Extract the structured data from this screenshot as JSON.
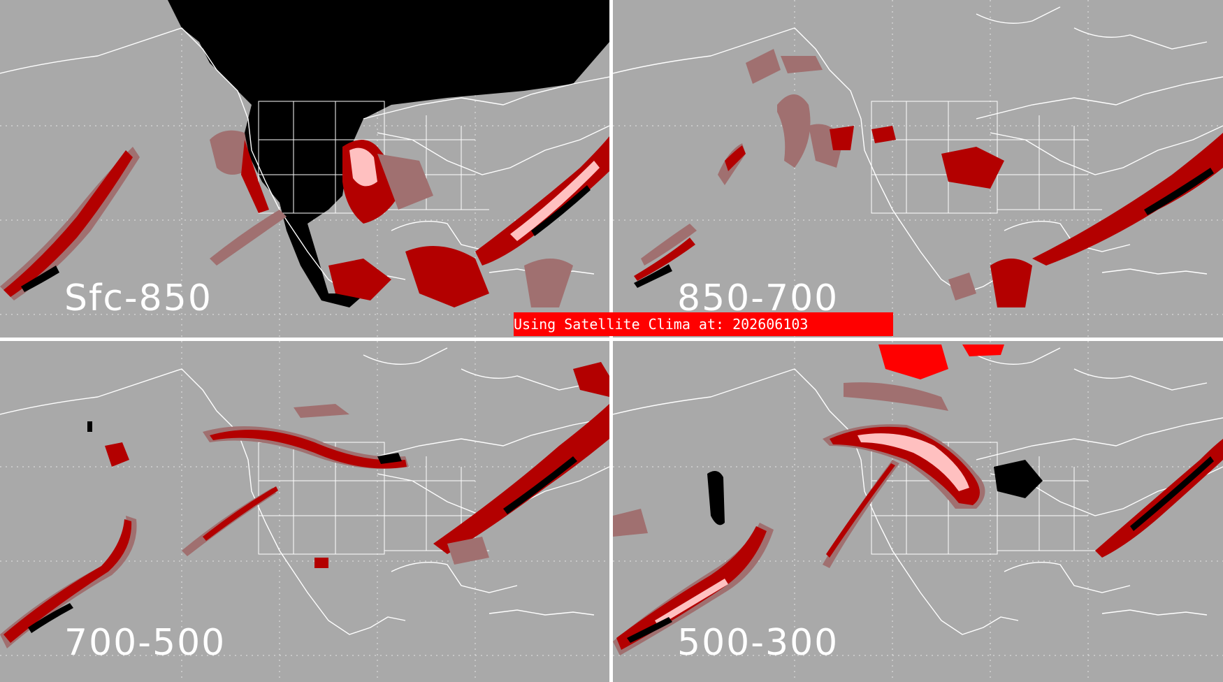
{
  "panels": [
    {
      "id": "sfc-850",
      "label": "Sfc-850"
    },
    {
      "id": "850-700",
      "label": "850-700"
    },
    {
      "id": "700-500",
      "label": "700-500"
    },
    {
      "id": "500-300",
      "label": "500-300"
    }
  ],
  "banner": {
    "text": "Using Satellite Clima at: 202606103"
  },
  "colors": {
    "background": "#a9a9a9",
    "coastline": "#ffffff",
    "no_data": "#000000",
    "low": "#a07070",
    "mid": "#b30000",
    "high": "#8b0000",
    "peak": "#ffc0c0",
    "banner": "#ff0000"
  }
}
